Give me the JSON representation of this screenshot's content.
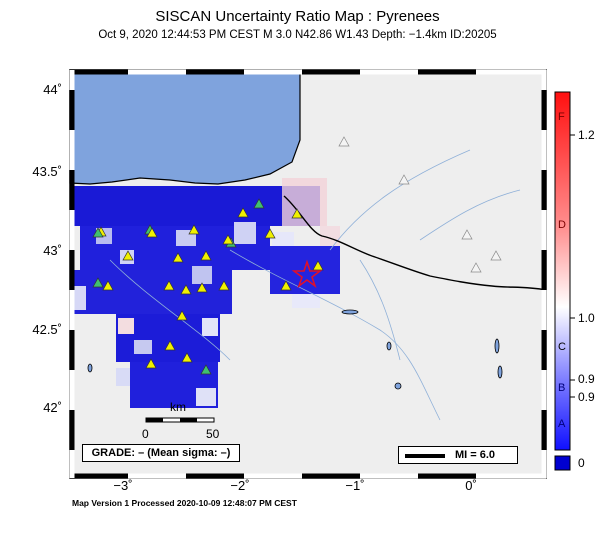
{
  "title": "SISCAN Uncertainty Ratio Map : Pyrenees",
  "subtitle": "Oct  9, 2020 12:44:53 PM CEST   M 3.0   N42.86 W1.43   Depth: −1.4km   ID:20205",
  "footer": "Map Version 1 Processed 2020-10-09 12:48:07 PM CEST",
  "axes": {
    "lat_labels": [
      "44˚",
      "43.5˚",
      "43˚",
      "42.5˚",
      "42˚"
    ],
    "lon_labels": [
      "−3˚",
      "−2˚",
      "−1˚",
      "0˚"
    ]
  },
  "grade_box": "GRADE: – (Mean sigma: –)",
  "mi_box": "MI = 6.0",
  "scale_bar": {
    "unit": "km",
    "tick_labels": [
      "0",
      "50"
    ]
  },
  "colorbar": {
    "value_labels": [
      "1.2",
      "1.0",
      "0.9",
      "0.9",
      "0"
    ],
    "grade_labels": [
      "F",
      "D",
      "C",
      "B",
      "A"
    ]
  },
  "colors": {
    "sea": "#7fa3dd",
    "land": "#eeeeee",
    "cell_low": "#1010d0",
    "station_fill": "#f0f000",
    "epicenter": "#e0102a"
  },
  "legend_icons": [
    "station-triangle-icon",
    "epicenter-star-icon"
  ]
}
